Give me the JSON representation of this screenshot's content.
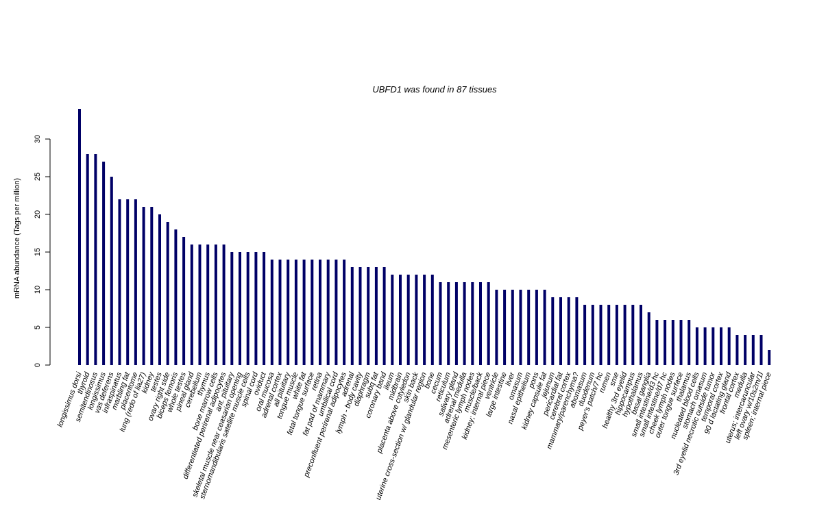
{
  "chart_data": {
    "type": "bar",
    "title": "UBFD1  was found in  87  tissues",
    "ylabel": "mRNA abundance (Tags per million)",
    "xlabel": "",
    "ylim": [
      0,
      34
    ],
    "yticks": [
      0,
      5,
      10,
      15,
      20,
      25,
      30
    ],
    "bar_color": "#000066",
    "grid": false,
    "categories": [
      "longissimus dorsi",
      "thyroid",
      "semitendinosus",
      "longissimus",
      "vas deferens",
      "infraspinatus",
      "marbling fat",
      "placentome",
      "lung (redo of lia27)",
      "kidney",
      "testes",
      "ovary right side",
      "biceps femoris",
      "whole testes",
      "pineal gland",
      "cerebellum",
      "thymus",
      "bone marrow cells",
      "differentiated perirenal adipocytes",
      "ant. pituitary",
      "skeletal muscle near ceasarian opening",
      "sternomandibularis satellite muscle cells",
      "spinal cord",
      "oviduct",
      "oral mucosa",
      "adrenal cortex",
      "all pituitary",
      "tongue muscle",
      "white fat",
      "fetal tongue surface",
      "retina",
      "fat pad of mammary",
      "umbilical cord",
      "preconfluent perirenal adipocytes",
      "adrenal",
      "lymph - body cavity",
      "diaphragm",
      "subq fat",
      "coronary band",
      "ileum",
      "midbrain",
      "placenta above cotyledon",
      "skin back",
      "uterine cross-section w/ glandular region",
      "bone",
      "cecum",
      "reticulum",
      "salivary gland",
      "adrenal medulla",
      "mesenteric lymph nodes",
      "muscle/back",
      "kidney; internal piece",
      "ventricle",
      "large intestine",
      "liver",
      "omasum",
      "nasal epithelium",
      "pons",
      "kidney capsule fat",
      "jejunum",
      "pericardial fat",
      "cerebral cortex",
      "mammary/parenchyma?",
      "abomasum",
      "duodenum",
      "peyer's patch/7 hc",
      "rumen",
      "sme",
      "healthy 3rd eyelid",
      "hippocampus",
      "hypothalamus",
      "basal ganglia",
      "small intestine/d3 hc",
      "small intestine/d7 hc",
      "cheek lymph nodes",
      "outer tongue surface",
      "thalamus",
      "nucleated blood cells",
      "stomach omasum",
      "3rd eyelid necrotic outside tumor",
      "temporal cortex",
      "90 d lactating gland",
      "frontal cortex",
      "medulla",
      "uterus; intercaruncular",
      "left ovary w/10s2m/1l",
      "spleen; internal piece"
    ],
    "values": [
      34,
      28,
      28,
      27,
      25,
      22,
      22,
      22,
      21,
      21,
      20,
      19,
      18,
      17,
      16,
      16,
      16,
      16,
      16,
      15,
      15,
      15,
      15,
      15,
      14,
      14,
      14,
      14,
      14,
      14,
      14,
      14,
      14,
      14,
      13,
      13,
      13,
      13,
      13,
      12,
      12,
      12,
      12,
      12,
      12,
      11,
      11,
      11,
      11,
      11,
      11,
      11,
      10,
      10,
      10,
      10,
      10,
      10,
      10,
      9,
      9,
      9,
      9,
      8,
      8,
      8,
      8,
      8,
      8,
      8,
      8,
      7,
      6,
      6,
      6,
      6,
      6,
      5,
      5,
      5,
      5,
      5,
      4,
      4,
      4,
      4,
      2
    ]
  }
}
